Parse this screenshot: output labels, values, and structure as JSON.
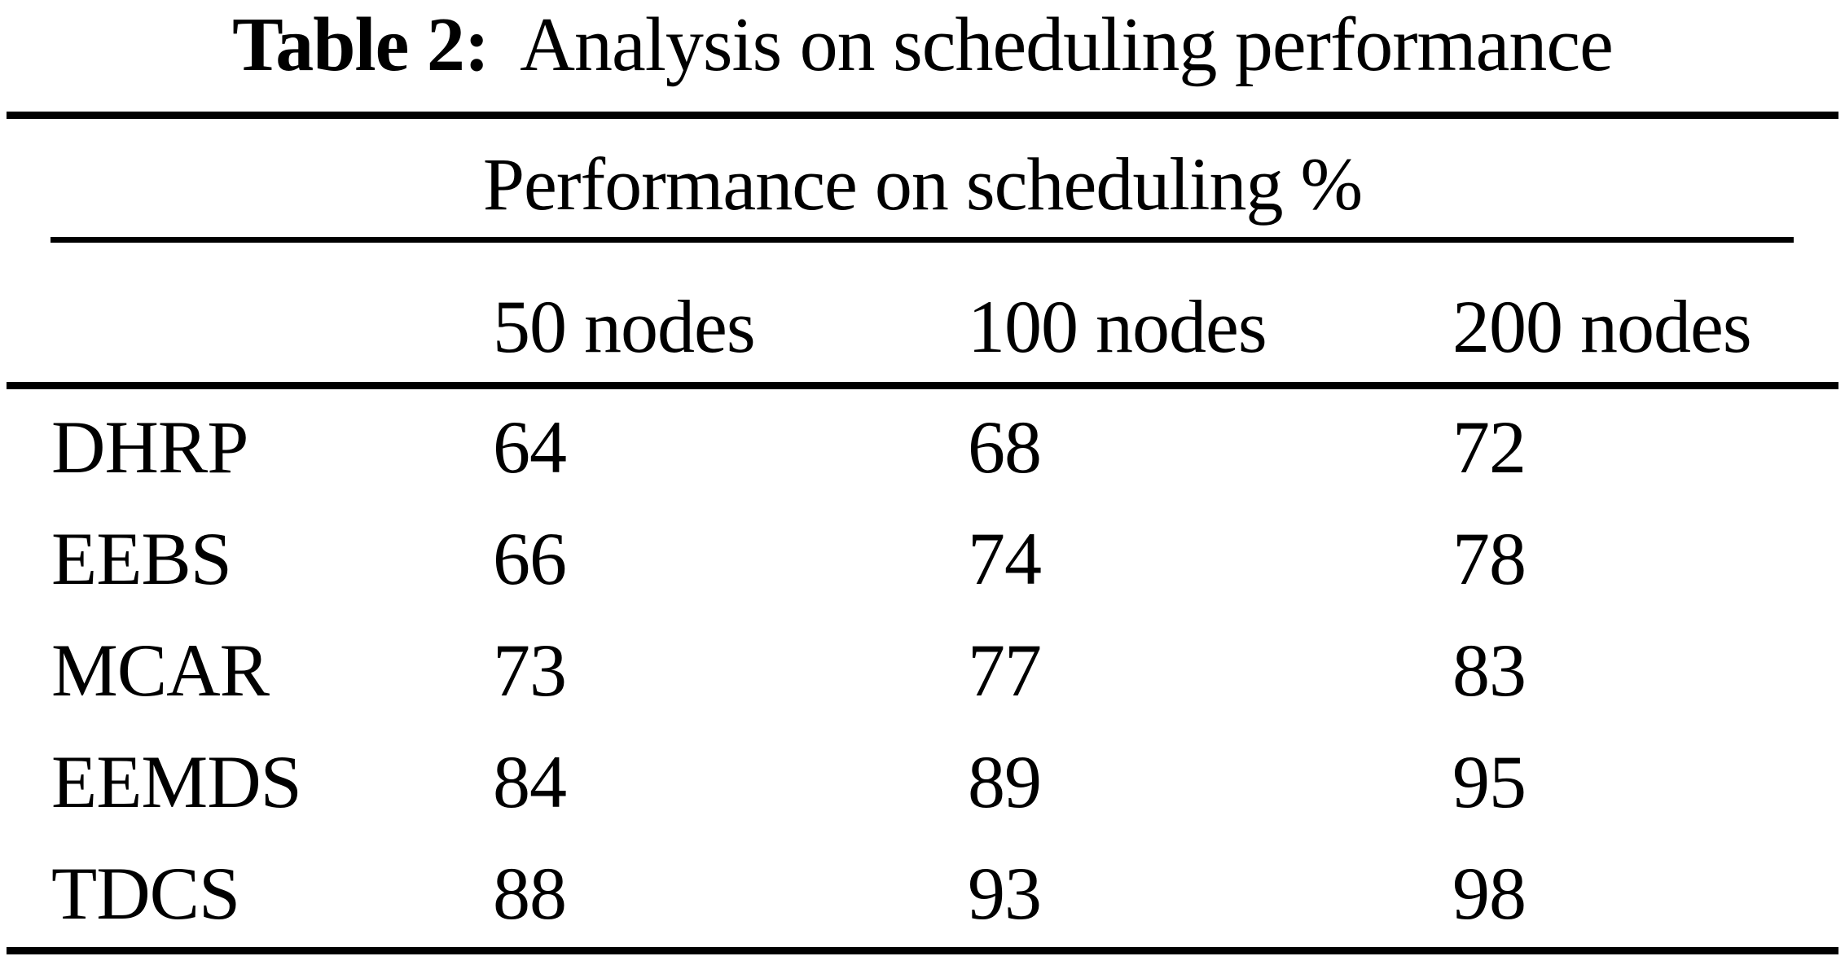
{
  "caption": {
    "label": "Table 2:",
    "text": "Analysis on scheduling performance"
  },
  "table": {
    "span_header": "Performance on scheduling %",
    "columns": [
      "50 nodes",
      "100 nodes",
      "200 nodes"
    ],
    "rows": [
      {
        "label": "DHRP",
        "values": [
          "64",
          "68",
          "72"
        ]
      },
      {
        "label": "EEBS",
        "values": [
          "66",
          "74",
          "78"
        ]
      },
      {
        "label": "MCAR",
        "values": [
          "73",
          "77",
          "83"
        ]
      },
      {
        "label": "EEMDS",
        "values": [
          "84",
          "89",
          "95"
        ]
      },
      {
        "label": "TDCS",
        "values": [
          "88",
          "93",
          "98"
        ]
      }
    ]
  },
  "chart_data": {
    "type": "table",
    "title": "Table 2: Analysis on scheduling performance",
    "group_header": "Performance on scheduling %",
    "categories": [
      "50 nodes",
      "100 nodes",
      "200 nodes"
    ],
    "series": [
      {
        "name": "DHRP",
        "values": [
          64,
          68,
          72
        ]
      },
      {
        "name": "EEBS",
        "values": [
          66,
          74,
          78
        ]
      },
      {
        "name": "MCAR",
        "values": [
          73,
          77,
          83
        ]
      },
      {
        "name": "EEMDS",
        "values": [
          84,
          89,
          95
        ]
      },
      {
        "name": "TDCS",
        "values": [
          88,
          93,
          98
        ]
      }
    ]
  },
  "colors": {
    "text": "#000000",
    "background": "#ffffff",
    "rule": "#000000"
  }
}
